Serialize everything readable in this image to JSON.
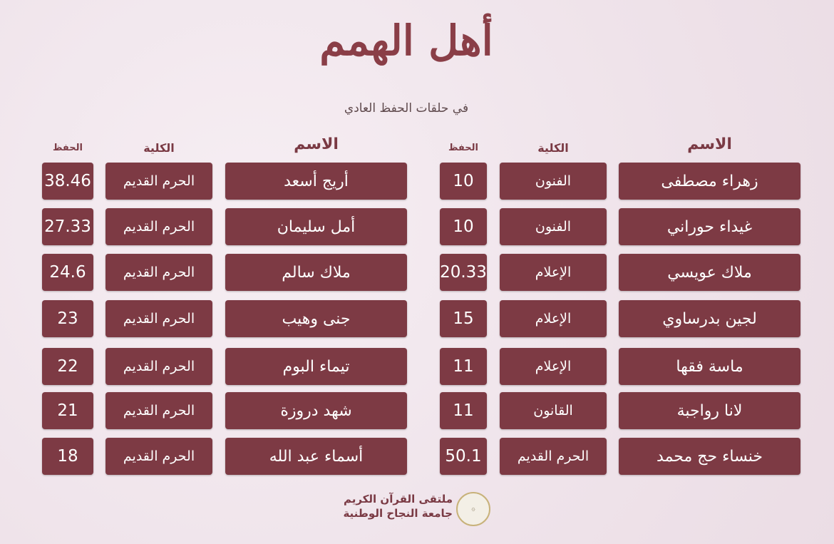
{
  "header": {
    "title": "أهل الهمم",
    "subtitle": "في حلقات الحفظ العادي"
  },
  "columns": {
    "name": "الاسم",
    "college": "الكلية",
    "score": "الحفظ"
  },
  "right_table": [
    {
      "name": "زهراء مصطفى",
      "college": "الفنون",
      "score": "10"
    },
    {
      "name": "غيداء حوراني",
      "college": "الفنون",
      "score": "10"
    },
    {
      "name": "ملاك عويسي",
      "college": "الإعلام",
      "score": "20.33"
    },
    {
      "name": "لجين بدرساوي",
      "college": "الإعلام",
      "score": "15"
    },
    {
      "name": "ماسة فقها",
      "college": "الإعلام",
      "score": "11"
    },
    {
      "name": "لانا رواجبة",
      "college": "القانون",
      "score": "11"
    },
    {
      "name": "خنساء حج محمد",
      "college": "الحرم القديم",
      "score": "50.1"
    }
  ],
  "left_table": [
    {
      "name": "أريج أسعد",
      "college": "الحرم القديم",
      "score": "38.46"
    },
    {
      "name": "أمل سليمان",
      "college": "الحرم القديم",
      "score": "27.33"
    },
    {
      "name": "ملاك سالم",
      "college": "الحرم القديم",
      "score": "24.6"
    },
    {
      "name": "جنى وهيب",
      "college": "الحرم القديم",
      "score": "23"
    },
    {
      "name": "تيماء البوم",
      "college": "الحرم القديم",
      "score": "22"
    },
    {
      "name": "شهد دروزة",
      "college": "الحرم القديم",
      "score": "21"
    },
    {
      "name": "أسماء عبد الله",
      "college": "الحرم القديم",
      "score": "18"
    }
  ],
  "footer": {
    "line1": "ملتقى القرآن الكريم",
    "line2": "جامعة النجاح الوطنية",
    "logo_icon": "quran-forum-seal"
  },
  "colors": {
    "cell": "#7d3a44",
    "text": "#7a3a44",
    "background": "#efe3ea"
  }
}
